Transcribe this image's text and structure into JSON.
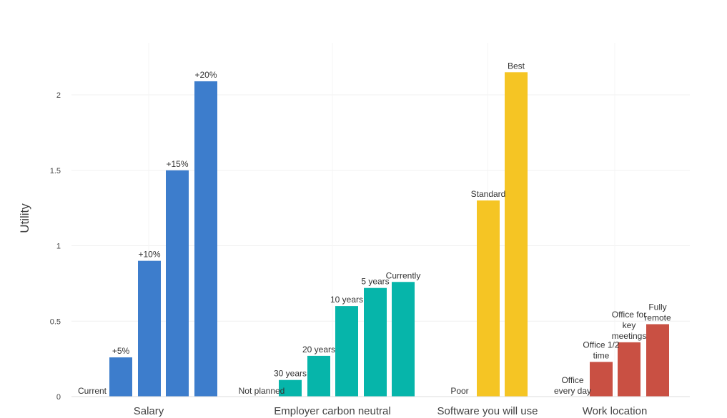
{
  "chart_data": {
    "type": "bar",
    "ylabel": "Utility",
    "ylim": [
      0,
      2.25
    ],
    "yticks": [
      {
        "value": 0,
        "label": "0"
      },
      {
        "value": 0.5,
        "label": "0.5"
      },
      {
        "value": 1,
        "label": "1"
      },
      {
        "value": 1.5,
        "label": "1.5"
      },
      {
        "value": 2,
        "label": "2"
      }
    ],
    "grid": true,
    "groups": [
      {
        "name": "Salary",
        "color": "#3d7dcc",
        "bars": [
          {
            "label": "Current",
            "value": 0
          },
          {
            "label": "+5%",
            "value": 0.26
          },
          {
            "label": "+10%",
            "value": 0.9
          },
          {
            "label": "+15%",
            "value": 1.5
          },
          {
            "label": "+20%",
            "value": 2.09
          }
        ]
      },
      {
        "name": "Employer carbon neutral",
        "color": "#06b5aa",
        "bars": [
          {
            "label": "Not planned",
            "value": 0
          },
          {
            "label": "30 years",
            "value": 0.11
          },
          {
            "label": "20 years",
            "value": 0.27
          },
          {
            "label": "10 years",
            "value": 0.6
          },
          {
            "label": "5 years",
            "value": 0.72
          },
          {
            "label": "Currently",
            "value": 0.76
          }
        ]
      },
      {
        "name": "Software you will use",
        "color": "#f5c524",
        "bars": [
          {
            "label": "Poor",
            "value": 0
          },
          {
            "label": "Standard",
            "value": 1.3
          },
          {
            "label": "Best",
            "value": 2.15
          }
        ]
      },
      {
        "name": "Work location",
        "color": "#c95043",
        "bars": [
          {
            "label": "Office every day",
            "value": 0
          },
          {
            "label": "Office 1/2 time",
            "value": 0.23
          },
          {
            "label": "Office for key meetings",
            "value": 0.36
          },
          {
            "label": "Fully remote",
            "value": 0.48
          }
        ]
      }
    ]
  }
}
